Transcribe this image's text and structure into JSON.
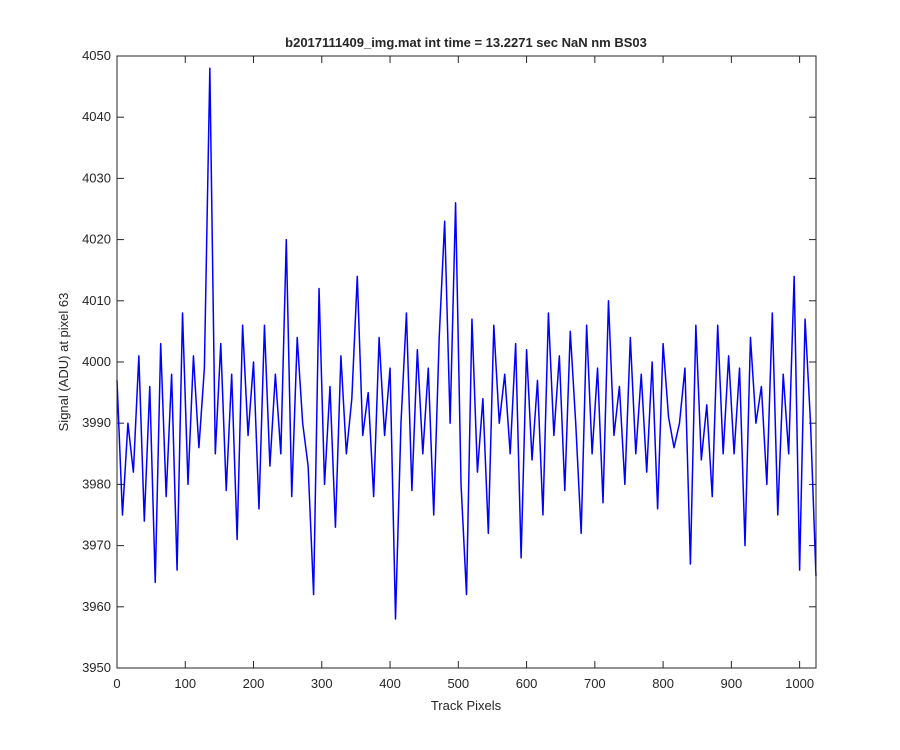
{
  "chart_data": {
    "type": "line",
    "title": "b2017111409_img.mat int time = 13.2271 sec  NaN nm BS03",
    "x_label": "Track Pixels",
    "y_label": "Signal (ADU) at pixel 63",
    "x": [
      0,
      8,
      16,
      24,
      32,
      40,
      48,
      56,
      64,
      72,
      80,
      88,
      96,
      104,
      112,
      120,
      128,
      136,
      144,
      152,
      160,
      168,
      176,
      184,
      192,
      200,
      208,
      216,
      224,
      232,
      240,
      248,
      256,
      264,
      272,
      280,
      288,
      296,
      304,
      312,
      320,
      328,
      336,
      344,
      352,
      360,
      368,
      376,
      384,
      392,
      400,
      408,
      416,
      424,
      432,
      440,
      448,
      456,
      464,
      472,
      480,
      488,
      496,
      504,
      512,
      520,
      528,
      536,
      544,
      552,
      560,
      568,
      576,
      584,
      592,
      600,
      608,
      616,
      624,
      632,
      640,
      648,
      656,
      664,
      672,
      680,
      688,
      696,
      704,
      712,
      720,
      728,
      736,
      744,
      752,
      760,
      768,
      776,
      784,
      792,
      800,
      808,
      816,
      824,
      832,
      840,
      848,
      856,
      864,
      872,
      880,
      888,
      896,
      904,
      912,
      920,
      928,
      936,
      944,
      952,
      960,
      968,
      976,
      984,
      992,
      1000,
      1008,
      1016,
      1024
    ],
    "series": [
      {
        "name": "signal",
        "color": "#0000ff",
        "values": [
          3997,
          3975,
          3990,
          3982,
          4001,
          3974,
          3996,
          3964,
          4003,
          3978,
          3998,
          3966,
          4008,
          3980,
          4001,
          3986,
          3999,
          4048,
          3985,
          4003,
          3979,
          3998,
          3971,
          4006,
          3988,
          4000,
          3976,
          4006,
          3983,
          3998,
          3985,
          4020,
          3978,
          4004,
          3990,
          3983,
          3962,
          4012,
          3980,
          3996,
          3973,
          4001,
          3985,
          3994,
          4014,
          3988,
          3995,
          3978,
          4004,
          3988,
          3999,
          3958,
          3990,
          4008,
          3979,
          4002,
          3985,
          3999,
          3975,
          4004,
          4023,
          3990,
          4026,
          3980,
          3962,
          4007,
          3982,
          3994,
          3972,
          4006,
          3990,
          3998,
          3985,
          4003,
          3968,
          4002,
          3984,
          3997,
          3975,
          4008,
          3988,
          4001,
          3979,
          4005,
          3990,
          3972,
          4006,
          3985,
          3999,
          3977,
          4010,
          3988,
          3996,
          3980,
          4004,
          3985,
          3998,
          3982,
          4000,
          3976,
          4003,
          3991,
          3986,
          3990,
          3999,
          3967,
          4006,
          3984,
          3993,
          3978,
          4006,
          3985,
          4001,
          3985,
          3999,
          3970,
          4004,
          3990,
          3996,
          3980,
          4008,
          3975,
          3998,
          3985,
          4014,
          3966,
          4007,
          3990,
          3965
        ]
      }
    ],
    "xlim": [
      0,
      1024
    ],
    "ylim": [
      3950,
      4050
    ],
    "xticks": [
      0,
      100,
      200,
      300,
      400,
      500,
      600,
      700,
      800,
      900,
      1000
    ],
    "yticks": [
      3950,
      3960,
      3970,
      3980,
      3990,
      4000,
      4010,
      4020,
      4030,
      4040,
      4050
    ],
    "grid": false
  }
}
